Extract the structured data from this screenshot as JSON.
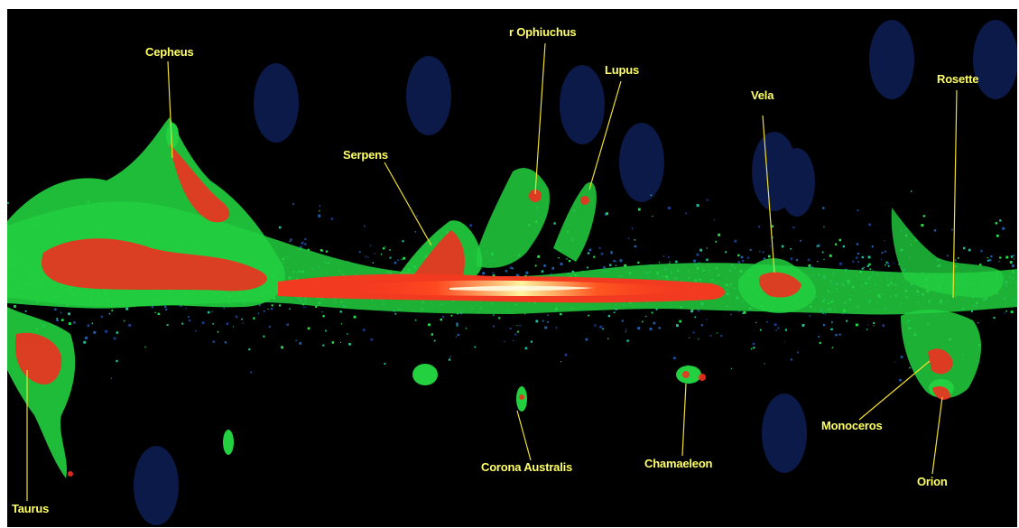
{
  "image": {
    "kind": "CO molecular cloud survey map of the Galactic plane",
    "background_color": "#000000",
    "palette": [
      "#1a3d8c",
      "#1fbf9f",
      "#22e04a",
      "#f03020",
      "#ff9a20",
      "#fff6a0"
    ]
  },
  "labels": [
    {
      "id": "cepheus",
      "text": "Cepheus"
    },
    {
      "id": "ophiuchus",
      "text": "r Ophiuchus"
    },
    {
      "id": "lupus",
      "text": "Lupus"
    },
    {
      "id": "serpens",
      "text": "Serpens"
    },
    {
      "id": "vela",
      "text": "Vela"
    },
    {
      "id": "rosette",
      "text": "Rosette"
    },
    {
      "id": "taurus",
      "text": "Taurus"
    },
    {
      "id": "corona-australis",
      "text": "Corona Australis"
    },
    {
      "id": "chamaeleon",
      "text": "Chamaeleon"
    },
    {
      "id": "monoceros",
      "text": "Monoceros"
    },
    {
      "id": "orion",
      "text": "Orion"
    }
  ]
}
